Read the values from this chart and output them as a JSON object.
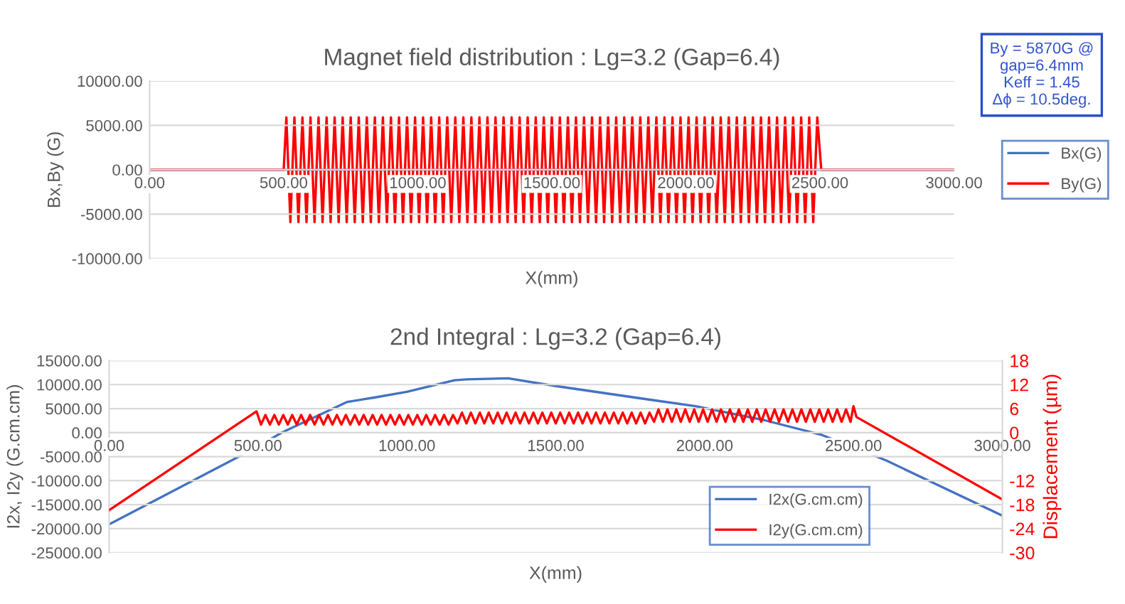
{
  "chart_data": [
    {
      "type": "line",
      "title": "Magnet field distribution : Lg=3.2 (Gap=6.4)",
      "xlabel": "X(mm)",
      "ylabel": "Bx,By (G)",
      "xlim": [
        0,
        3000
      ],
      "ylim": [
        -10000,
        10000
      ],
      "xticks": [
        {
          "value": 0,
          "label": "0.00"
        },
        {
          "value": 500,
          "label": "500.00"
        },
        {
          "value": 1000,
          "label": "1000.00"
        },
        {
          "value": 1500,
          "label": "1500.00"
        },
        {
          "value": 2000,
          "label": "2000.00"
        },
        {
          "value": 2500,
          "label": "2500.00"
        },
        {
          "value": 3000,
          "label": "3000.00"
        }
      ],
      "yticks": [
        {
          "value": -10000,
          "label": "-10000.00"
        },
        {
          "value": -5000,
          "label": "-5000.00"
        },
        {
          "value": 0,
          "label": "0.00"
        },
        {
          "value": 5000,
          "label": "5000.00"
        },
        {
          "value": 10000,
          "label": "10000.00"
        }
      ],
      "grid": "y",
      "legend": "right",
      "annotations": [
        "By = 5870G @\ngap=6.4mm\nKeff = 1.45\nΔϕ = 10.5deg."
      ],
      "series": [
        {
          "name": "Bx(G)",
          "color": "#4472c4",
          "x": [
            0,
            3000
          ],
          "values": [
            0,
            0
          ]
        },
        {
          "name": "By(G)",
          "color": "#ff0000",
          "x": [
            0,
            500,
            510,
            525,
            540,
            555,
            570,
            585,
            600,
            615,
            630,
            645,
            660,
            675,
            690,
            705,
            720,
            735,
            750,
            765,
            780,
            795,
            810,
            825,
            840,
            855,
            870,
            885,
            900,
            915,
            930,
            945,
            960,
            975,
            990,
            1005,
            1020,
            1035,
            1050,
            1065,
            1080,
            1095,
            1110,
            1125,
            1140,
            1155,
            1170,
            1185,
            1200,
            1215,
            1230,
            1245,
            1260,
            1275,
            1290,
            1305,
            1320,
            1335,
            1350,
            1365,
            1380,
            1395,
            1410,
            1425,
            1440,
            1455,
            1470,
            1485,
            1500,
            1515,
            1530,
            1545,
            1560,
            1575,
            1590,
            1605,
            1620,
            1635,
            1650,
            1665,
            1680,
            1695,
            1710,
            1725,
            1740,
            1755,
            1770,
            1785,
            1800,
            1815,
            1830,
            1845,
            1860,
            1875,
            1890,
            1905,
            1920,
            1935,
            1950,
            1965,
            1980,
            1995,
            2010,
            2025,
            2040,
            2055,
            2070,
            2085,
            2100,
            2115,
            2130,
            2145,
            2160,
            2175,
            2190,
            2205,
            2220,
            2235,
            2250,
            2265,
            2280,
            2295,
            2310,
            2325,
            2340,
            2355,
            2370,
            2385,
            2400,
            2415,
            2430,
            2445,
            2460,
            2475,
            2490,
            2505,
            3000
          ],
          "values": [
            0,
            0,
            5900,
            -5900,
            5900,
            -5900,
            5900,
            -5900,
            5900,
            -5900,
            5900,
            -5900,
            5900,
            -5900,
            5900,
            -5900,
            5900,
            -5900,
            5900,
            -5900,
            5900,
            -5900,
            5900,
            -5900,
            5900,
            -5900,
            5900,
            -5900,
            5900,
            -5900,
            5900,
            -5900,
            5900,
            -5900,
            5900,
            -5900,
            5900,
            -5900,
            5900,
            -5900,
            5900,
            -5900,
            5900,
            -5900,
            5900,
            -5900,
            5900,
            -5900,
            5900,
            -5900,
            5900,
            -5900,
            5900,
            -5900,
            5900,
            -5900,
            5900,
            -5900,
            5900,
            -5900,
            5900,
            -5900,
            5900,
            -5900,
            5900,
            -5900,
            5900,
            -5900,
            5900,
            -5900,
            5900,
            -5900,
            5900,
            -5900,
            5900,
            -5900,
            5900,
            -5900,
            5900,
            -5900,
            5900,
            -5900,
            5900,
            -5900,
            5900,
            -5900,
            5900,
            -5900,
            5900,
            -5900,
            5900,
            -5900,
            5900,
            -5900,
            5900,
            -5900,
            5900,
            -5900,
            5900,
            -5900,
            5900,
            -5900,
            5900,
            -5900,
            5900,
            -5900,
            5900,
            -5900,
            5900,
            -5900,
            5900,
            -5900,
            5900,
            -5900,
            5900,
            -5900,
            5900,
            -5900,
            5900,
            -5900,
            5900,
            -5900,
            5900,
            -5900,
            5900,
            -5900,
            5900,
            -5900,
            5900,
            -5900,
            5900,
            -5900,
            5900,
            -5900,
            5900,
            0,
            0
          ]
        }
      ]
    },
    {
      "type": "line",
      "title": "2nd Integral : Lg=3.2 (Gap=6.4)",
      "xlabel": "X(mm)",
      "ylabel": "I2x, I2y (G.cm.cm)",
      "y2label": "Displacement (µm)",
      "xlim": [
        0,
        3000
      ],
      "ylim": [
        -25000,
        15000
      ],
      "y2lim": [
        -30,
        18
      ],
      "xticks": [
        {
          "value": 0,
          "label": "0.00"
        },
        {
          "value": 500,
          "label": "500.00"
        },
        {
          "value": 1000,
          "label": "1000.00"
        },
        {
          "value": 1500,
          "label": "1500.00"
        },
        {
          "value": 2000,
          "label": "2000.00"
        },
        {
          "value": 2500,
          "label": "2500.00"
        },
        {
          "value": 3000,
          "label": "3000.00"
        }
      ],
      "yticks": [
        {
          "value": -25000,
          "label": "-25000.00"
        },
        {
          "value": -20000,
          "label": "-20000.00"
        },
        {
          "value": -15000,
          "label": "-15000.00"
        },
        {
          "value": -10000,
          "label": "-10000.00"
        },
        {
          "value": -5000,
          "label": "-5000.00"
        },
        {
          "value": 0,
          "label": "0.00"
        },
        {
          "value": 5000,
          "label": "5000.00"
        },
        {
          "value": 10000,
          "label": "10000.00"
        },
        {
          "value": 15000,
          "label": "15000.00"
        }
      ],
      "y2ticks": [
        -30,
        -24,
        -18,
        -12,
        {
          "value": -6,
          "label": null
        },
        0,
        6,
        12,
        18
      ],
      "grid": "y",
      "legend": "bottom right",
      "series": [
        {
          "name": "I2x(G.cm.cm)",
          "color": "#4472c4",
          "x": [
            0,
            500,
            580,
            800,
            890,
            1000,
            1160,
            1200,
            1340,
            1500,
            1800,
            1970,
            2200,
            2390,
            2610,
            3000
          ],
          "values": [
            -19100,
            -2900,
            0,
            6400,
            7300,
            8500,
            10900,
            11100,
            11300,
            9700,
            7000,
            5500,
            2600,
            -400,
            -5800,
            -17300
          ]
        },
        {
          "name": "I2y(G.cm.cm)",
          "color": "#ff0000",
          "axis": "y2",
          "x": [
            0,
            495,
            510,
            525,
            540,
            555,
            570,
            585,
            600,
            615,
            630,
            645,
            660,
            675,
            690,
            705,
            720,
            735,
            750,
            765,
            780,
            795,
            810,
            825,
            840,
            855,
            870,
            885,
            900,
            915,
            930,
            945,
            960,
            975,
            990,
            1005,
            1020,
            1035,
            1050,
            1065,
            1080,
            1095,
            1110,
            1125,
            1140,
            1155,
            1170,
            1185,
            1200,
            1215,
            1230,
            1245,
            1260,
            1275,
            1290,
            1305,
            1320,
            1335,
            1350,
            1365,
            1380,
            1395,
            1410,
            1425,
            1440,
            1455,
            1470,
            1485,
            1500,
            1515,
            1530,
            1545,
            1560,
            1575,
            1590,
            1605,
            1620,
            1635,
            1650,
            1665,
            1680,
            1695,
            1710,
            1725,
            1740,
            1755,
            1770,
            1785,
            1800,
            1815,
            1830,
            1845,
            1860,
            1875,
            1890,
            1905,
            1920,
            1935,
            1950,
            1965,
            1980,
            1995,
            2010,
            2025,
            2040,
            2055,
            2070,
            2085,
            2100,
            2115,
            2130,
            2145,
            2160,
            2175,
            2190,
            2205,
            2220,
            2235,
            2250,
            2265,
            2280,
            2295,
            2310,
            2325,
            2340,
            2355,
            2370,
            2385,
            2400,
            2415,
            2430,
            2445,
            2460,
            2475,
            2490,
            2500,
            2510,
            3000
          ],
          "values": [
            -19.4,
            5.3,
            2.0,
            4.4,
            2.0,
            4.4,
            2.0,
            4.4,
            2.0,
            4.4,
            2.0,
            4.4,
            2.0,
            4.4,
            2.0,
            4.4,
            2.0,
            4.4,
            2.0,
            4.4,
            2.0,
            4.4,
            2.0,
            4.4,
            2.0,
            4.4,
            2.0,
            4.4,
            2.0,
            4.4,
            2.0,
            4.4,
            2.0,
            4.4,
            2.0,
            4.4,
            2.0,
            4.4,
            2.0,
            4.4,
            2.0,
            4.4,
            2.0,
            4.4,
            2.0,
            4.4,
            2.3,
            5.0,
            2.3,
            5.0,
            2.3,
            5.0,
            2.3,
            5.0,
            2.3,
            5.0,
            2.3,
            5.0,
            2.3,
            5.0,
            2.3,
            5.0,
            2.3,
            5.0,
            2.3,
            5.0,
            2.3,
            5.0,
            2.3,
            5.0,
            2.3,
            5.0,
            2.3,
            5.0,
            2.3,
            5.0,
            2.3,
            5.0,
            2.3,
            5.0,
            2.3,
            5.0,
            2.3,
            5.0,
            2.3,
            5.0,
            2.3,
            5.0,
            2.3,
            5.0,
            2.7,
            5.8,
            2.7,
            5.8,
            2.7,
            5.8,
            2.7,
            5.8,
            2.7,
            5.8,
            2.7,
            5.8,
            2.7,
            5.8,
            2.7,
            5.8,
            2.7,
            5.8,
            2.7,
            5.8,
            2.7,
            5.8,
            2.7,
            5.8,
            2.7,
            5.8,
            2.7,
            5.8,
            2.7,
            5.8,
            2.7,
            5.8,
            2.7,
            5.8,
            2.7,
            5.8,
            2.7,
            5.8,
            2.7,
            5.8,
            2.7,
            5.8,
            2.7,
            5.8,
            2.7,
            6.6,
            3.9,
            -16.7
          ]
        }
      ]
    }
  ]
}
